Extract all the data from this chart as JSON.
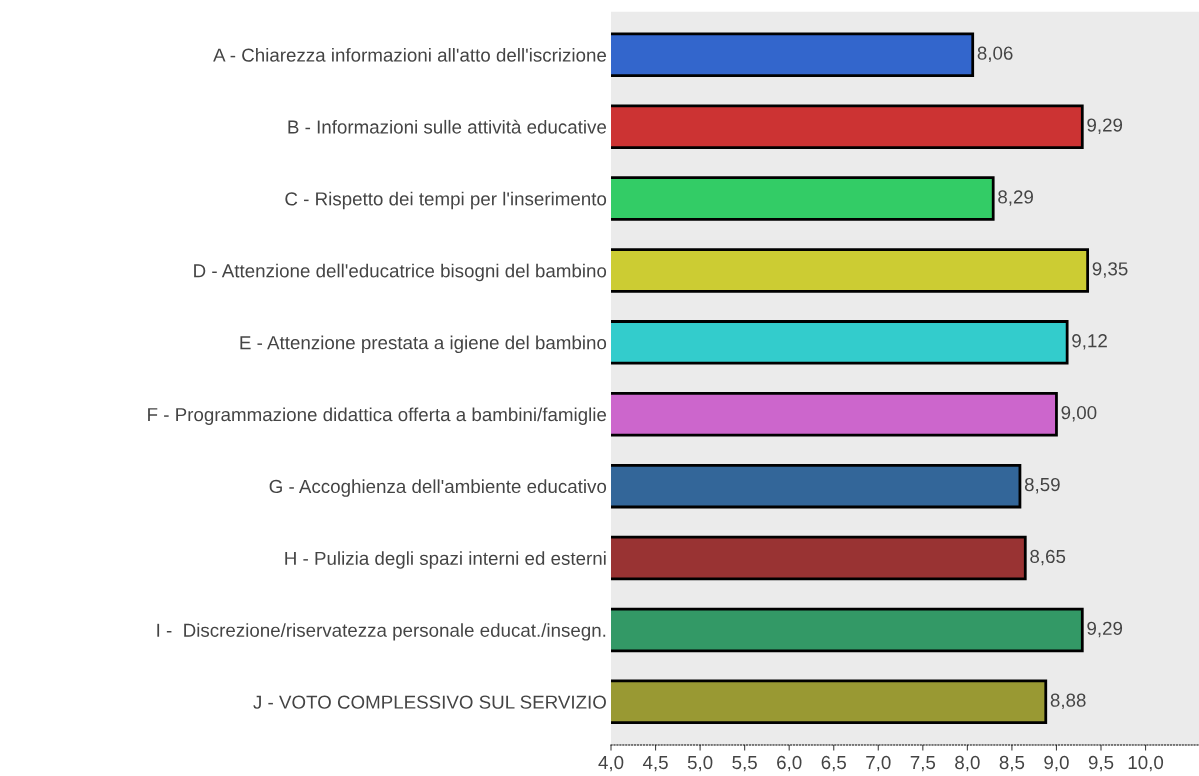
{
  "chart_data": {
    "type": "bar",
    "orientation": "horizontal",
    "categories": [
      "A - Chiarezza informazioni all'atto dell'iscrizione",
      "B - Informazioni sulle attività educative",
      "C - Rispetto dei tempi per l'inserimento",
      "D - Attenzione dell'educatrice bisogni del bambino",
      "E - Attenzione prestata a igiene del bambino",
      "F - Programmazione didattica offerta a bambini/famiglie",
      "G - Accoghienza dell'ambiente educativo",
      "H - Pulizia degli spazi interni ed esterni",
      "I -  Discrezione/riservatezza personale educat./insegn.",
      "J - VOTO COMPLESSIVO SUL SERVIZIO"
    ],
    "values": [
      8.06,
      9.29,
      8.29,
      9.35,
      9.12,
      9.0,
      8.59,
      8.65,
      9.29,
      8.88
    ],
    "value_labels": [
      "8,06",
      "9,29",
      "8,29",
      "9,35",
      "9,12",
      "9,00",
      "8,59",
      "8,65",
      "9,29",
      "8,88"
    ],
    "colors": [
      "#3366cc",
      "#cc3333",
      "#33cc66",
      "#cccc33",
      "#33cccc",
      "#cc66cc",
      "#336699",
      "#993333",
      "#339966",
      "#999933"
    ],
    "xlim": [
      4,
      10.6
    ],
    "xticks": [
      {
        "value": 4,
        "label": "4,0"
      },
      {
        "value": 4.5,
        "label": "4,5"
      },
      {
        "value": 5,
        "label": "5,0"
      },
      {
        "value": 5.5,
        "label": "5,5"
      },
      {
        "value": 6,
        "label": "6,0"
      },
      {
        "value": 6.5,
        "label": "6,5"
      },
      {
        "value": 7,
        "label": "7,0"
      },
      {
        "value": 7.5,
        "label": "7,5"
      },
      {
        "value": 8,
        "label": "8,0"
      },
      {
        "value": 8.5,
        "label": "8,5"
      },
      {
        "value": 9,
        "label": "9,0"
      },
      {
        "value": 9.5,
        "label": "9,5"
      },
      {
        "value": 10,
        "label": "10,0"
      }
    ],
    "grid": false,
    "legend": false
  }
}
